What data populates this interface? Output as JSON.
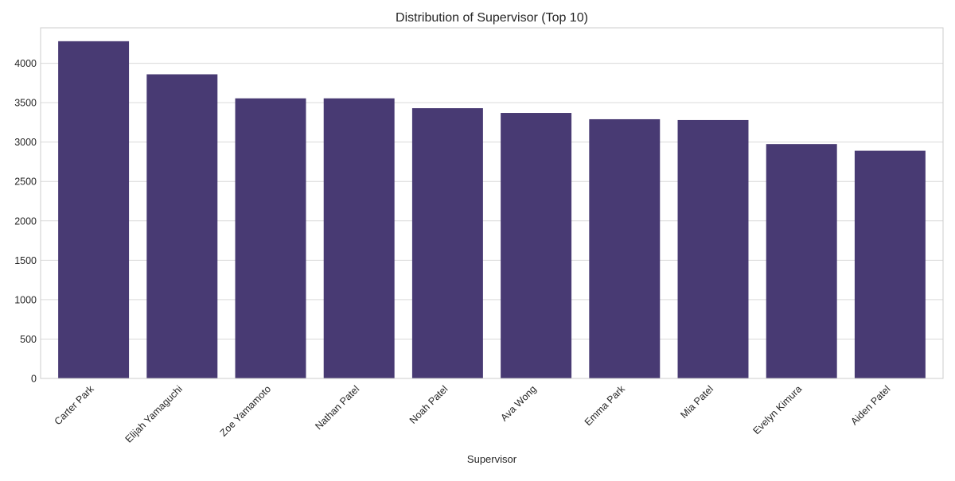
{
  "chart_data": {
    "type": "bar",
    "title": "Distribution of Supervisor (Top 10)",
    "xlabel": "Supervisor",
    "ylabel": "",
    "categories": [
      "Carter Park",
      "Elijah Yamaguchi",
      "Zoe Yamamoto",
      "Nathan Patel",
      "Noah Patel",
      "Ava Wong",
      "Emma Park",
      "Mia Patel",
      "Evelyn Kimura",
      "Aiden Patel"
    ],
    "values": [
      4280,
      3860,
      3555,
      3555,
      3430,
      3370,
      3290,
      3280,
      2975,
      2890
    ],
    "ylim": [
      0,
      4450
    ],
    "yticks": [
      0,
      500,
      1000,
      1500,
      2000,
      2500,
      3000,
      3500,
      4000
    ],
    "grid": true,
    "bar_color": "#483a73"
  }
}
